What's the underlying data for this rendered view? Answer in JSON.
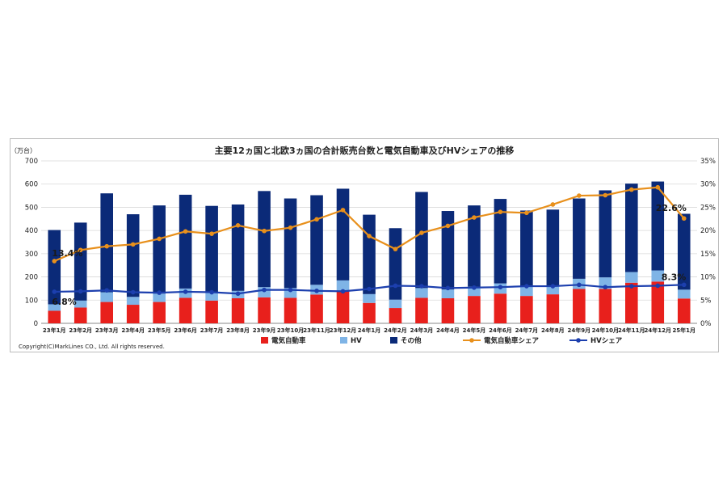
{
  "chart_data": {
    "type": "bar",
    "stacked": true,
    "title": "主要12ヵ国と北欧3ヵ国の合計販売台数と電気自動車及びHVシェアの推移",
    "y_unit_label": "（万台）",
    "ylim": [
      0,
      700
    ],
    "y_ticks": [
      0,
      100,
      200,
      300,
      400,
      500,
      600,
      700
    ],
    "y2lim": [
      0,
      35
    ],
    "y2_ticks": [
      "0%",
      "5%",
      "10%",
      "15%",
      "20%",
      "25%",
      "30%",
      "35%"
    ],
    "categories": [
      "23年1月",
      "23年2月",
      "23年3月",
      "23年4月",
      "23年5月",
      "23年6月",
      "23年7月",
      "23年8月",
      "23年9月",
      "23年10月",
      "23年11月",
      "23年12月",
      "24年1月",
      "24年2月",
      "24年3月",
      "24年4月",
      "24年5月",
      "24年6月",
      "24年7月",
      "24年8月",
      "24年9月",
      "24年10月",
      "24年11月",
      "24年12月",
      "25年1月"
    ],
    "series": [
      {
        "name": "電気自動車",
        "kind": "bar",
        "color": "#e8201c",
        "values": [
          54,
          68,
          92,
          80,
          92,
          110,
          98,
          108,
          112,
          110,
          124,
          140,
          88,
          66,
          110,
          108,
          118,
          128,
          118,
          125,
          148,
          148,
          175,
          180,
          107
        ]
      },
      {
        "name": "HV",
        "kind": "bar",
        "color": "#7fb4e6",
        "values": [
          28,
          30,
          42,
          34,
          36,
          40,
          36,
          32,
          44,
          42,
          42,
          45,
          38,
          36,
          42,
          38,
          40,
          44,
          42,
          36,
          44,
          50,
          46,
          48,
          38
        ]
      },
      {
        "name": "その他",
        "kind": "bar",
        "color": "#0b2a78",
        "values": [
          320,
          336,
          426,
          356,
          380,
          404,
          372,
          372,
          414,
          386,
          386,
          395,
          342,
          308,
          414,
          338,
          350,
          364,
          326,
          329,
          346,
          375,
          381,
          383,
          327
        ]
      },
      {
        "name": "電気自動車シェア",
        "kind": "line",
        "axis": "right",
        "color": "#e8901c",
        "values": [
          13.4,
          15.8,
          16.6,
          17.0,
          18.2,
          19.8,
          19.3,
          21.1,
          19.9,
          20.6,
          22.4,
          24.4,
          18.8,
          16.0,
          19.5,
          21.0,
          22.8,
          24.0,
          23.8,
          25.6,
          27.5,
          27.6,
          28.8,
          29.3,
          22.6
        ]
      },
      {
        "name": "HVシェア",
        "kind": "line",
        "axis": "right",
        "color": "#1c3fae",
        "values": [
          6.8,
          6.9,
          7.1,
          6.7,
          6.6,
          6.8,
          6.7,
          6.4,
          7.2,
          7.2,
          7.0,
          6.9,
          7.4,
          8.1,
          8.0,
          7.6,
          7.7,
          7.8,
          8.0,
          8.0,
          8.3,
          7.8,
          8.0,
          8.1,
          8.3
        ]
      }
    ],
    "annotations": [
      {
        "text": "13.4%",
        "series": "電気自動車シェア",
        "index": 0
      },
      {
        "text": "6.8%",
        "series": "HVシェア",
        "index": 0
      },
      {
        "text": "22.6%",
        "series": "電気自動車シェア",
        "index": 24
      },
      {
        "text": "8.3%",
        "series": "HVシェア",
        "index": 24
      }
    ],
    "legend_position": "bottom",
    "copyright": "Copyright(C)MarkLines CO., Ltd. All rights reserved."
  }
}
